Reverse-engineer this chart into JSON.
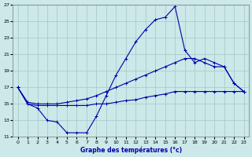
{
  "xlabel": "Graphe des températures (°c)",
  "background_color": "#cce8e8",
  "line_color": "#0000aa",
  "grid_color": "#aacccc",
  "xlim": [
    -0.5,
    23.5
  ],
  "ylim": [
    11,
    27
  ],
  "yticks": [
    11,
    13,
    15,
    17,
    19,
    21,
    23,
    25,
    27
  ],
  "xticks": [
    0,
    1,
    2,
    3,
    4,
    5,
    6,
    7,
    8,
    9,
    10,
    11,
    12,
    13,
    14,
    15,
    16,
    17,
    18,
    19,
    20,
    21,
    22,
    23
  ],
  "line1_x": [
    0,
    1,
    2,
    3,
    4,
    5,
    6,
    7,
    8,
    9,
    10,
    11,
    12,
    13,
    14,
    15,
    16,
    17,
    18,
    19,
    20,
    21,
    22,
    23
  ],
  "line1_y": [
    17.0,
    15.0,
    14.5,
    13.0,
    12.8,
    11.5,
    11.5,
    11.5,
    13.5,
    16.0,
    18.5,
    20.5,
    22.5,
    24.0,
    25.2,
    25.5,
    26.8,
    21.5,
    20.0,
    20.5,
    20.0,
    19.5,
    17.5,
    16.5
  ],
  "line2_x": [
    0,
    1,
    2,
    3,
    4,
    5,
    6,
    7,
    8,
    9,
    10,
    11,
    12,
    13,
    14,
    15,
    16,
    17,
    18,
    19,
    20,
    21,
    22,
    23
  ],
  "line2_y": [
    17.0,
    15.2,
    15.0,
    15.0,
    15.0,
    15.2,
    15.4,
    15.6,
    16.0,
    16.5,
    17.0,
    17.5,
    18.0,
    18.5,
    19.0,
    19.5,
    20.0,
    20.5,
    20.5,
    20.0,
    19.5,
    19.5,
    17.5,
    16.5
  ],
  "line3_x": [
    0,
    1,
    2,
    3,
    4,
    5,
    6,
    7,
    8,
    9,
    10,
    11,
    12,
    13,
    14,
    15,
    16,
    17,
    18,
    19,
    20,
    21,
    22,
    23
  ],
  "line3_y": [
    17.0,
    15.0,
    14.8,
    14.8,
    14.8,
    14.8,
    14.8,
    14.8,
    15.0,
    15.0,
    15.2,
    15.4,
    15.5,
    15.8,
    16.0,
    16.2,
    16.5,
    16.5,
    16.5,
    16.5,
    16.5,
    16.5,
    16.5,
    16.5
  ]
}
